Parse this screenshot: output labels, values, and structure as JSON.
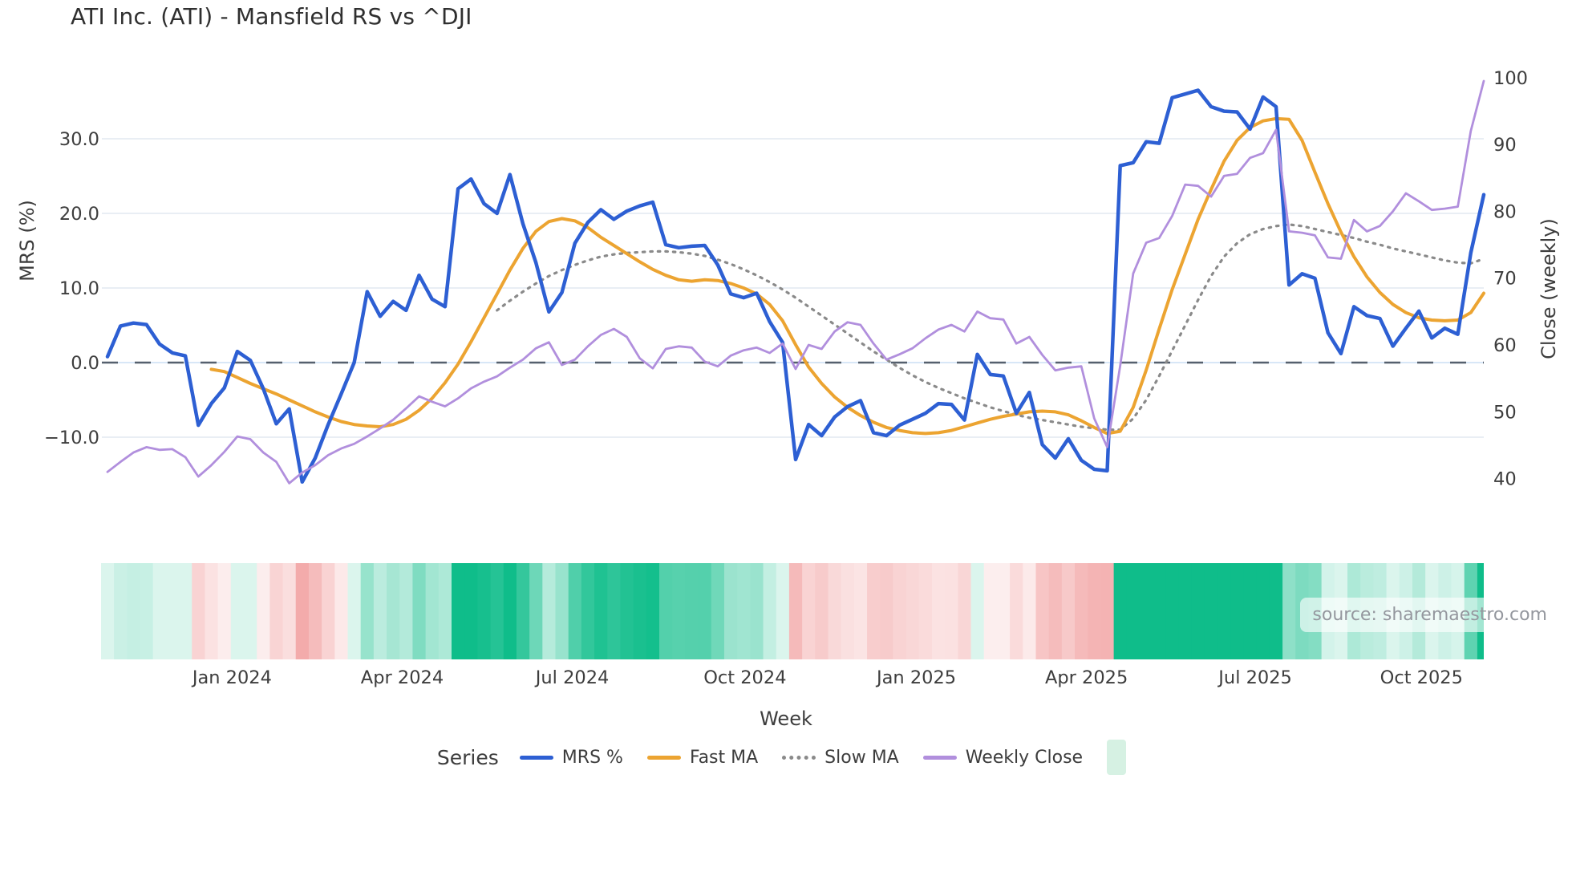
{
  "title": "ATI Inc. (ATI) - Mansfield RS vs ^DJI",
  "source_note": "source: sharemaestro.com",
  "x_axis_title": "Week",
  "legend": {
    "title": "Series",
    "items": [
      {
        "label": "MRS %",
        "swatch": "line",
        "color": "#2d5fd3"
      },
      {
        "label": "Fast MA",
        "swatch": "line",
        "color": "#eca431"
      },
      {
        "label": "Slow MA",
        "swatch": "dotted-line",
        "color": "#8a8a8a"
      },
      {
        "label": "Weekly Close",
        "swatch": "line",
        "color": "#b18fdd"
      },
      {
        "label": "",
        "swatch": "square",
        "color": "#d6f1e3"
      }
    ]
  },
  "chart_data": {
    "type": "line",
    "title": "ATI Inc. (ATI) - Mansfield RS vs ^DJI",
    "xlabel": "Week",
    "ylabel_left": "MRS (%)",
    "ylabel_right": "Close (weekly)",
    "grid": true,
    "legend_position": "bottom",
    "x_tick_labels": [
      "Jan 2024",
      "Apr 2024",
      "Jul 2024",
      "Oct 2024",
      "Jan 2025",
      "Apr 2025",
      "Jul 2025",
      "Oct 2025"
    ],
    "x_tick_weeks": [
      9.6,
      22.7,
      35.8,
      49.1,
      62.3,
      75.4,
      88.4,
      101.2
    ],
    "weeks_total": 106,
    "left_axis": {
      "tick_values": [
        30,
        20,
        10,
        0,
        -10
      ],
      "tick_labels": [
        "30.0",
        "20.0",
        "10.0",
        "0.0",
        "−10.0"
      ],
      "range": [
        -18,
        40
      ]
    },
    "right_axis": {
      "tick_values": [
        100,
        90,
        80,
        70,
        60,
        50,
        40
      ],
      "tick_labels": [
        "100",
        "90",
        "80",
        "70",
        "60",
        "50",
        "40"
      ],
      "range": [
        37,
        103
      ]
    },
    "zero_line": {
      "axis": "left",
      "value": 0,
      "color": "#55606e",
      "style": "dashed"
    },
    "series": [
      {
        "name": "MRS %",
        "axis": "left",
        "color": "#2d5fd3",
        "style": "solid",
        "width": 4.5,
        "start_week": 0,
        "values": [
          0.8,
          4.9,
          5.3,
          5.1,
          2.5,
          1.3,
          0.9,
          -8.4,
          -5.5,
          -3.4,
          1.5,
          0.3,
          -3.5,
          -8.2,
          -6.2,
          -16.0,
          -12.8,
          -8.3,
          -4.2,
          0.0,
          9.5,
          6.2,
          8.2,
          7.0,
          11.7,
          8.5,
          7.5,
          23.3,
          24.6,
          21.3,
          20.0,
          25.2,
          18.6,
          13.4,
          6.8,
          9.4,
          16.0,
          18.8,
          20.5,
          19.2,
          20.3,
          21.0,
          21.5,
          15.8,
          15.4,
          15.6,
          15.7,
          13.1,
          9.2,
          8.7,
          9.3,
          5.5,
          2.7,
          -13.0,
          -8.3,
          -9.8,
          -7.3,
          -5.9,
          -5.1,
          -9.4,
          -9.8,
          -8.4,
          -7.6,
          -6.8,
          -5.5,
          -5.6,
          -7.7,
          1.1,
          -1.6,
          -1.8,
          -6.8,
          -4.0,
          -11.0,
          -12.8,
          -10.2,
          -13.1,
          -14.3,
          -14.5,
          26.4,
          26.8,
          29.6,
          29.4,
          35.5,
          36.0,
          36.5,
          34.3,
          33.7,
          33.6,
          31.3,
          35.6,
          34.3,
          10.4,
          11.9,
          11.3,
          4.0,
          1.2,
          7.5,
          6.3,
          5.9,
          2.2,
          4.6,
          6.9,
          3.3,
          4.6,
          3.8,
          14.7,
          22.5
        ]
      },
      {
        "name": "Fast MA",
        "axis": "left",
        "color": "#eca431",
        "style": "solid",
        "width": 4,
        "start_week": 8,
        "values": [
          -0.9,
          -1.2,
          -2.0,
          -2.8,
          -3.5,
          -4.2,
          -5.0,
          -5.8,
          -6.6,
          -7.3,
          -7.9,
          -8.3,
          -8.5,
          -8.6,
          -8.3,
          -7.6,
          -6.4,
          -4.8,
          -2.7,
          -0.2,
          2.8,
          6.0,
          9.2,
          12.4,
          15.3,
          17.6,
          18.9,
          19.3,
          19.0,
          18.1,
          16.8,
          15.7,
          14.6,
          13.5,
          12.5,
          11.7,
          11.1,
          10.9,
          11.1,
          11.0,
          10.6,
          10.0,
          9.2,
          7.8,
          5.6,
          2.4,
          -0.6,
          -2.8,
          -4.6,
          -6.0,
          -7.1,
          -8.0,
          -8.7,
          -9.1,
          -9.4,
          -9.5,
          -9.4,
          -9.1,
          -8.6,
          -8.1,
          -7.6,
          -7.2,
          -6.9,
          -6.6,
          -6.5,
          -6.6,
          -7.0,
          -7.8,
          -8.7,
          -9.5,
          -9.2,
          -6.0,
          -1.0,
          4.5,
          9.8,
          14.5,
          19.2,
          23.2,
          27.0,
          29.8,
          31.5,
          32.4,
          32.7,
          32.6,
          29.8,
          25.5,
          21.3,
          17.5,
          14.2,
          11.5,
          9.4,
          7.8,
          6.7,
          6.0,
          5.7,
          5.6,
          5.7,
          6.7,
          9.3
        ]
      },
      {
        "name": "Slow MA",
        "axis": "left",
        "color": "#8a8a8a",
        "style": "dotted",
        "width": 3.2,
        "start_week": 30,
        "values": [
          7.0,
          8.3,
          9.5,
          10.6,
          11.6,
          12.4,
          13.1,
          13.7,
          14.2,
          14.5,
          14.7,
          14.8,
          14.9,
          14.9,
          14.8,
          14.6,
          14.3,
          13.8,
          13.2,
          12.5,
          11.7,
          10.8,
          9.8,
          8.7,
          7.5,
          6.3,
          5.1,
          3.9,
          2.7,
          1.5,
          0.4,
          -0.7,
          -1.7,
          -2.6,
          -3.4,
          -4.1,
          -4.8,
          -5.4,
          -6.0,
          -6.5,
          -7.0,
          -7.4,
          -7.7,
          -8.0,
          -8.3,
          -8.6,
          -8.8,
          -9.0,
          -9.0,
          -7.5,
          -5.0,
          -1.8,
          1.6,
          5.0,
          8.4,
          11.6,
          14.2,
          16.0,
          17.2,
          17.9,
          18.3,
          18.5,
          18.3,
          17.9,
          17.5,
          17.1,
          16.7,
          16.2,
          15.8,
          15.3,
          14.9,
          14.5,
          14.1,
          13.7,
          13.4,
          13.3,
          13.9
        ]
      },
      {
        "name": "Weekly Close",
        "axis": "right",
        "color": "#b18fdd",
        "style": "solid",
        "width": 2.8,
        "start_week": 0,
        "values": [
          41.0,
          42.5,
          43.9,
          44.7,
          44.3,
          44.4,
          43.2,
          40.3,
          42.0,
          44.0,
          46.3,
          45.9,
          43.9,
          42.5,
          39.3,
          40.9,
          42.0,
          43.5,
          44.5,
          45.2,
          46.3,
          47.5,
          48.8,
          50.5,
          52.3,
          51.5,
          50.8,
          52.0,
          53.5,
          54.5,
          55.3,
          56.6,
          57.8,
          59.5,
          60.4,
          57.0,
          57.8,
          59.8,
          61.5,
          62.4,
          61.2,
          58.0,
          56.5,
          59.4,
          59.8,
          59.6,
          57.5,
          56.8,
          58.4,
          59.2,
          59.6,
          58.8,
          60.2,
          56.4,
          60.0,
          59.4,
          62.0,
          63.4,
          63.0,
          60.2,
          57.8,
          58.6,
          59.5,
          61.0,
          62.3,
          63.0,
          62.0,
          65.0,
          64.0,
          63.8,
          60.2,
          61.2,
          58.5,
          56.2,
          56.6,
          56.8,
          49.0,
          44.7,
          56.9,
          70.7,
          75.3,
          76.0,
          79.3,
          84.0,
          83.8,
          82.2,
          85.3,
          85.6,
          88.0,
          88.7,
          92.2,
          77.0,
          76.8,
          76.4,
          73.1,
          72.9,
          78.7,
          77.0,
          77.8,
          80.0,
          82.7,
          81.5,
          80.2,
          80.4,
          80.7,
          92.0,
          99.5
        ]
      }
    ],
    "heatmap": {
      "source_series": "MRS %",
      "scale_max": 22,
      "min_intensity": 0.15,
      "positive_color": "#0fbd8a",
      "negative_color": "#ee8b8b"
    }
  }
}
